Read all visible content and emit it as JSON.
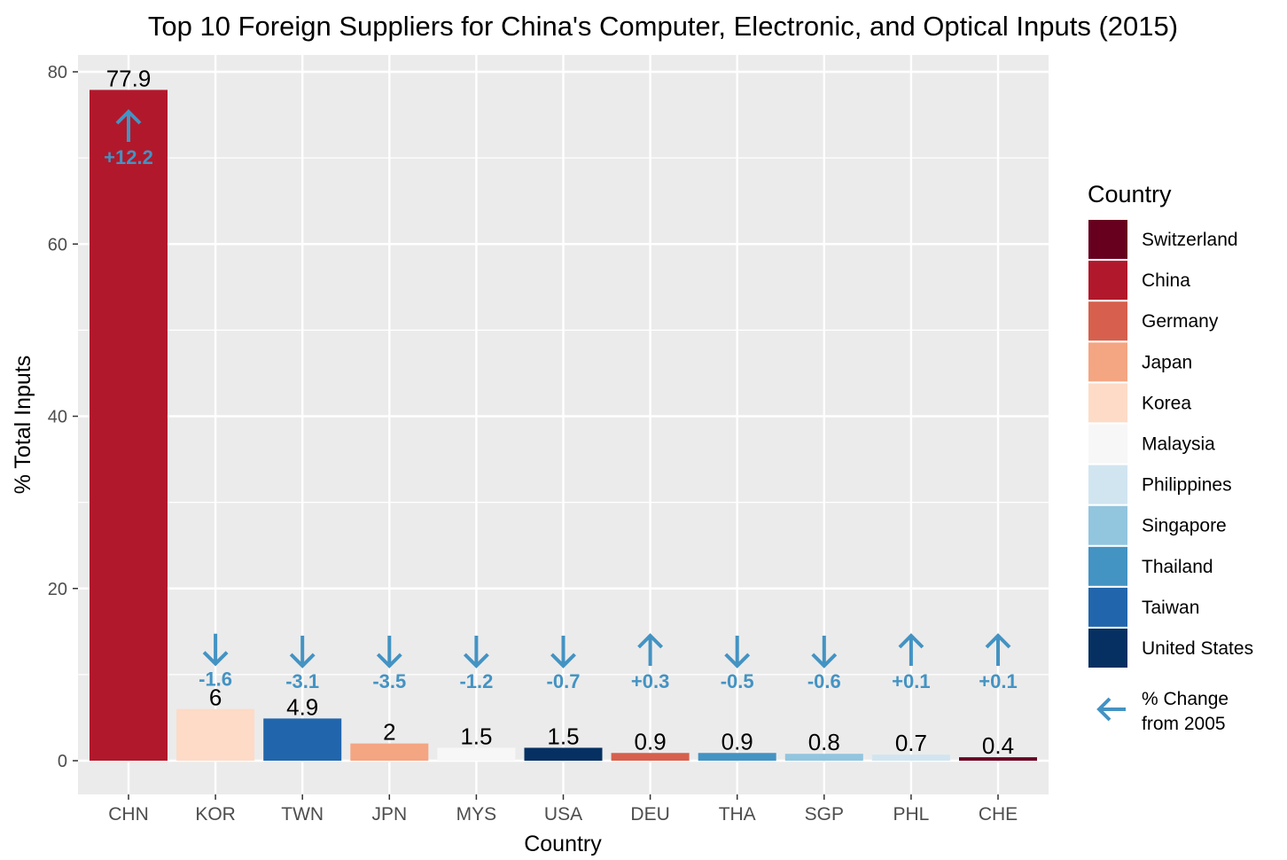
{
  "chart_data": {
    "type": "bar",
    "title": "Top 10 Foreign Suppliers for China's Computer, Electronic, and Optical Inputs (2015)",
    "xlabel": "Country",
    "ylabel": "% Total Inputs",
    "ylim": [
      0,
      80
    ],
    "yticks": [
      0,
      20,
      40,
      60,
      80
    ],
    "grid": true,
    "categories": [
      "CHN",
      "KOR",
      "TWN",
      "JPN",
      "MYS",
      "USA",
      "DEU",
      "THA",
      "SGP",
      "PHL",
      "CHE"
    ],
    "values": [
      77.9,
      6,
      4.9,
      2,
      1.5,
      1.5,
      0.9,
      0.9,
      0.8,
      0.7,
      0.4
    ],
    "value_labels": [
      "77.9",
      "6",
      "4.9",
      "2",
      "1.5",
      "1.5",
      "0.9",
      "0.9",
      "0.8",
      "0.7",
      "0.4"
    ],
    "change_from_2005": [
      12.2,
      -1.6,
      -3.1,
      -3.5,
      -1.2,
      -0.7,
      0.3,
      -0.5,
      -0.6,
      0.1,
      0.1
    ],
    "change_labels": [
      "+12.2",
      "-1.6",
      "-3.1",
      "-3.5",
      "-1.2",
      "-0.7",
      "+0.3",
      "-0.5",
      "-0.6",
      "+0.1",
      "+0.1"
    ],
    "bar_countries": [
      "China",
      "Korea",
      "Taiwan",
      "Japan",
      "Malaysia",
      "United States",
      "Germany",
      "Thailand",
      "Singapore",
      "Philippines",
      "Switzerland"
    ],
    "arrow_color": "#4393c3",
    "legend": {
      "title": "Country",
      "placement": "right",
      "entries": [
        {
          "name": "Switzerland",
          "color": "#67001f"
        },
        {
          "name": "China",
          "color": "#b2182b"
        },
        {
          "name": "Germany",
          "color": "#d6604d"
        },
        {
          "name": "Japan",
          "color": "#f4a582"
        },
        {
          "name": "Korea",
          "color": "#fddbc7"
        },
        {
          "name": "Malaysia",
          "color": "#f7f7f7"
        },
        {
          "name": "Philippines",
          "color": "#d1e5f0"
        },
        {
          "name": "Singapore",
          "color": "#92c5de"
        },
        {
          "name": "Thailand",
          "color": "#4393c3"
        },
        {
          "name": "Taiwan",
          "color": "#2166ac"
        },
        {
          "name": "United States",
          "color": "#053061"
        }
      ],
      "arrow_legend_label_1": "% Change",
      "arrow_legend_label_2": "from 2005"
    }
  }
}
